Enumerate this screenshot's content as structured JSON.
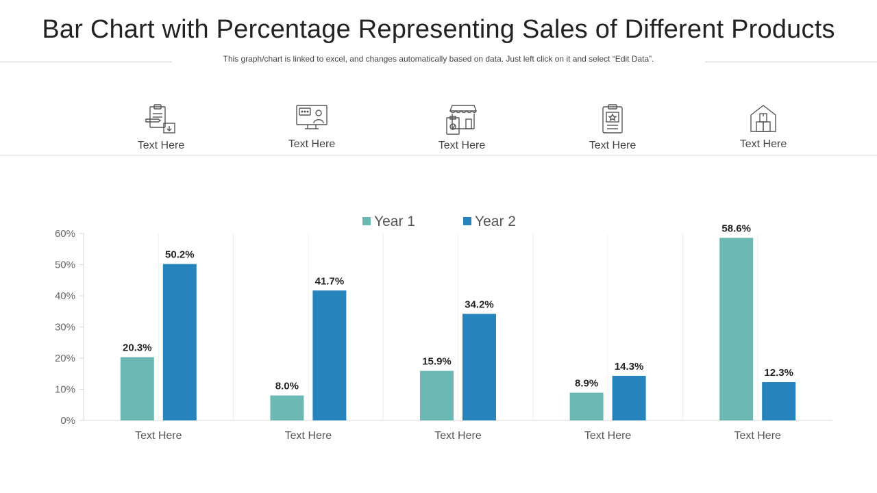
{
  "title": "Bar Chart with Percentage Representing Sales of Different Products",
  "subtitle": "This graph/chart is linked to excel, and changes automatically based on data. Just left click on it and select “Edit Data”.",
  "icons": [
    {
      "name": "clipboard-pen-icon",
      "label": "Text Here"
    },
    {
      "name": "monitor-chat-icon",
      "label": "Text Here"
    },
    {
      "name": "store-checklist-icon",
      "label": "Text Here"
    },
    {
      "name": "clipboard-star-icon",
      "label": "Text Here"
    },
    {
      "name": "warehouse-box-icon",
      "label": "Text Here"
    }
  ],
  "colors": {
    "year1": "#6cb9b4",
    "year2": "#2783bb"
  },
  "chart_data": {
    "type": "bar",
    "title": "",
    "xlabel": "",
    "ylabel": "",
    "categories": [
      "Text Here",
      "Text Here",
      "Text Here",
      "Text Here",
      "Text Here"
    ],
    "series": [
      {
        "name": "Year 1",
        "values": [
          20.3,
          8.0,
          15.9,
          8.9,
          58.6
        ]
      },
      {
        "name": "Year 2",
        "values": [
          50.2,
          41.7,
          34.2,
          14.3,
          12.3
        ]
      }
    ],
    "ylim": [
      0,
      60
    ],
    "yticks": [
      0,
      10,
      20,
      30,
      40,
      50,
      60
    ],
    "ytick_labels": [
      "0%",
      "10%",
      "20%",
      "30%",
      "40%",
      "50%",
      "60%"
    ],
    "value_labels": [
      [
        "20.3%",
        "8.0%",
        "15.9%",
        "8.9%",
        "58.6%"
      ],
      [
        "50.2%",
        "41.7%",
        "34.2%",
        "14.3%",
        "12.3%"
      ]
    ],
    "legend": "top-center"
  }
}
